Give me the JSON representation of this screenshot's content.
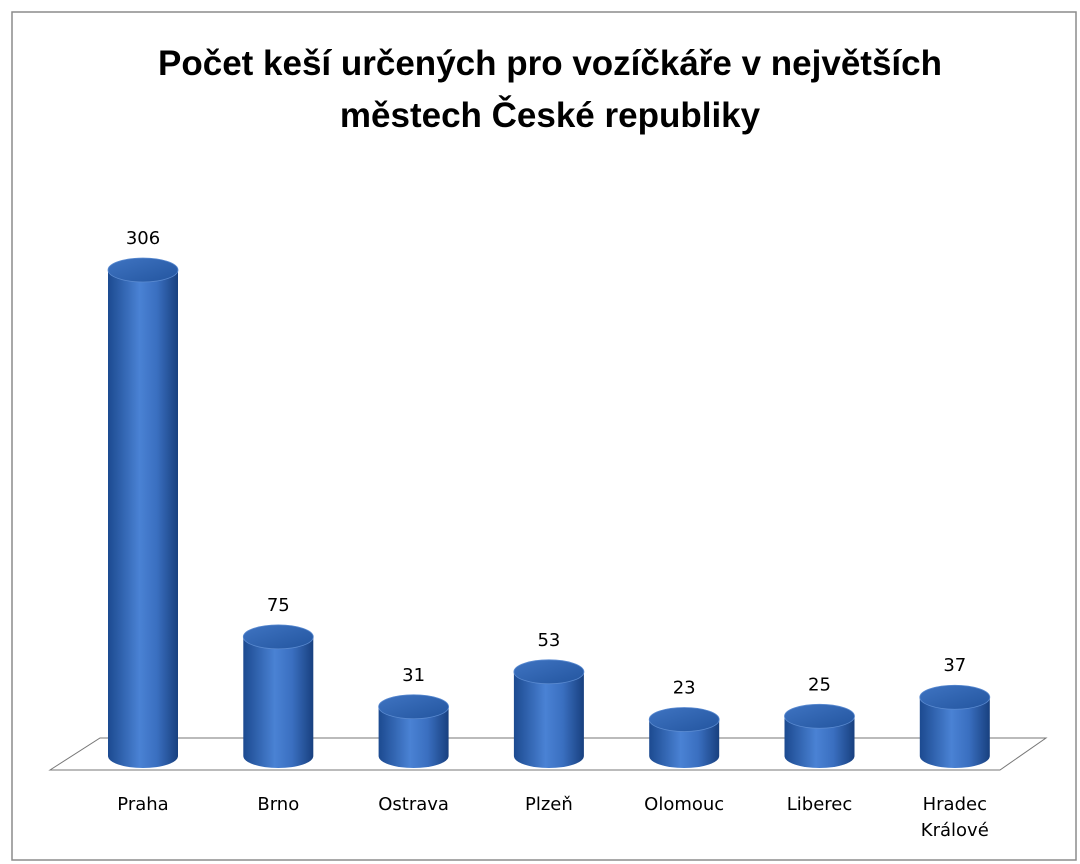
{
  "chart_data": {
    "type": "bar",
    "title": "Počet keší určených pro vozíčkáře v největších městech České republiky",
    "categories": [
      "Praha",
      "Brno",
      "Ostrava",
      "Plzeň",
      "Olomouc",
      "Liberec",
      "Hradec Králové"
    ],
    "values": [
      306,
      75,
      31,
      53,
      23,
      25,
      37
    ],
    "color": "#3a6fc0"
  }
}
